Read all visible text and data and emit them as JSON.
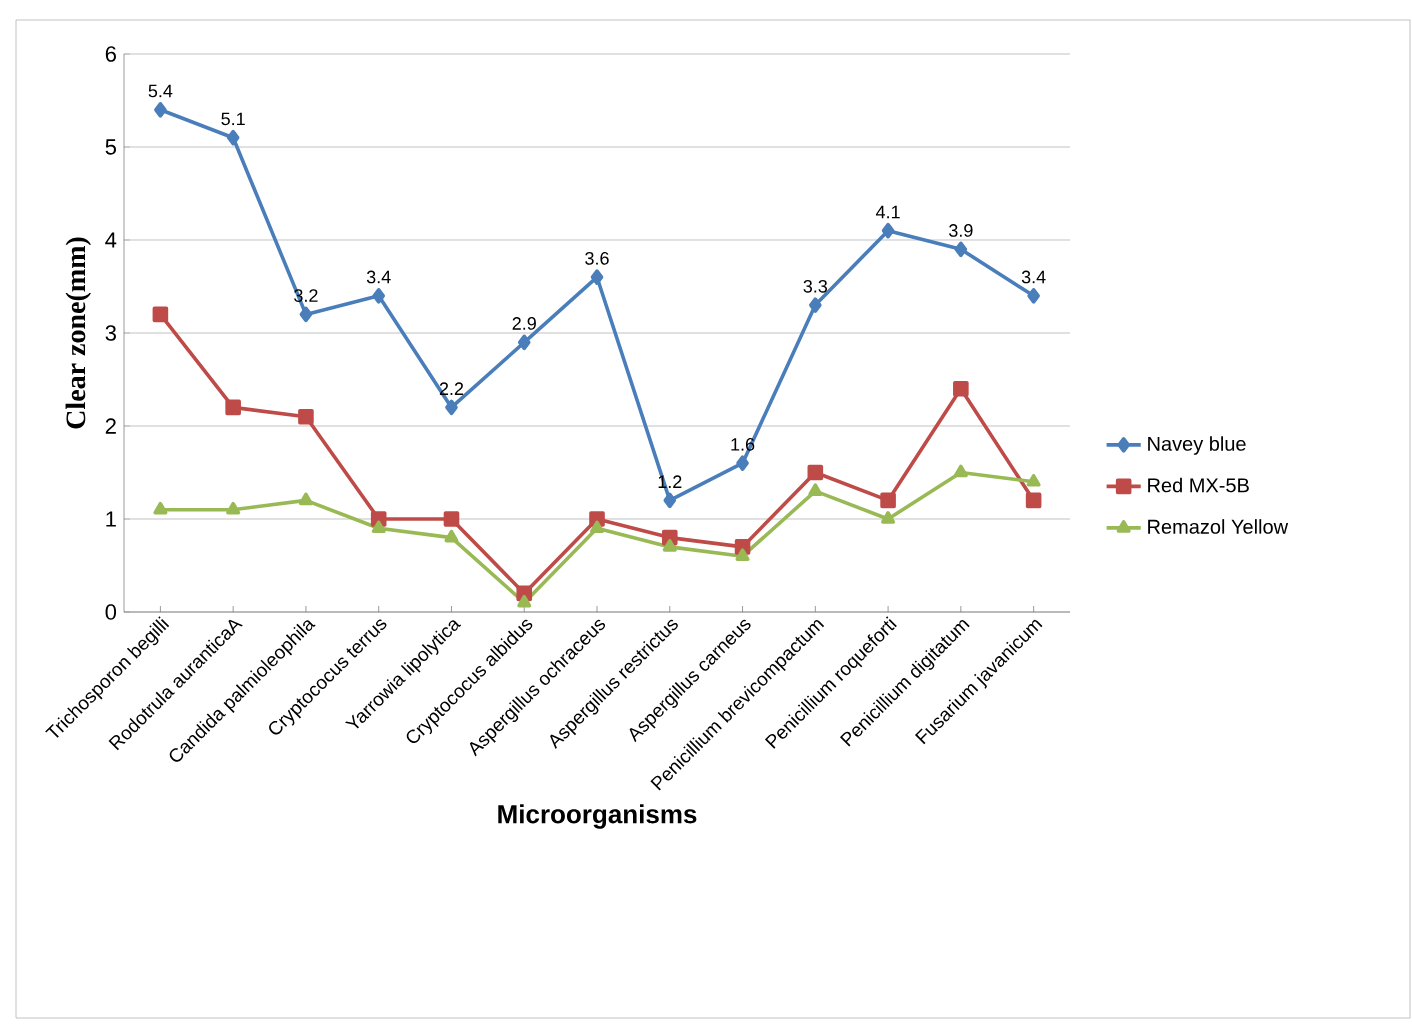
{
  "chart_data": {
    "type": "line",
    "xlabel": "Microorganisms",
    "ylabel": "Clear zone(mm)",
    "categories": [
      "Trichosporon begilli",
      "Rodotrula auranticaA",
      "Candida palmioleophila",
      "Cryptococus terrus",
      "Yarrowia lipolytica",
      "Cryptococus albidus",
      "Aspergillus ochraceus",
      "Aspergillus restrictus",
      "Aspergillus carneus",
      "Penicillium brevicompactum",
      "Penicillium roqueforti",
      "Penicillium digitatum",
      "Fusarium javanicum"
    ],
    "series": [
      {
        "name": "Navey blue",
        "color": "#4a7ebb",
        "marker": "diamond",
        "values": [
          5.4,
          5.1,
          3.2,
          3.4,
          2.2,
          2.9,
          3.6,
          1.2,
          1.6,
          3.3,
          4.1,
          3.9,
          3.4
        ],
        "value_labels": [
          "5.4",
          "5.1",
          "3.2",
          "3.4",
          "2.2",
          "2.9",
          "3.6",
          "1.2",
          "1.6",
          "3.3",
          "4.1",
          "3.9",
          "3.4"
        ]
      },
      {
        "name": "Red MX-5B",
        "color": "#be4b48",
        "marker": "square",
        "values": [
          3.2,
          2.2,
          2.1,
          1.0,
          1.0,
          0.2,
          1.0,
          0.8,
          0.7,
          1.5,
          1.2,
          2.4,
          1.2
        ]
      },
      {
        "name": "Remazol Yellow",
        "color": "#98b954",
        "marker": "triangle",
        "values": [
          1.1,
          1.1,
          1.2,
          0.9,
          0.8,
          0.1,
          0.9,
          0.7,
          0.6,
          1.3,
          1.0,
          1.5,
          1.4
        ]
      }
    ],
    "ylim": [
      0,
      6
    ],
    "yticks": [
      0,
      1,
      2,
      3,
      4,
      5,
      6
    ],
    "grid": "y",
    "legend": "right"
  }
}
